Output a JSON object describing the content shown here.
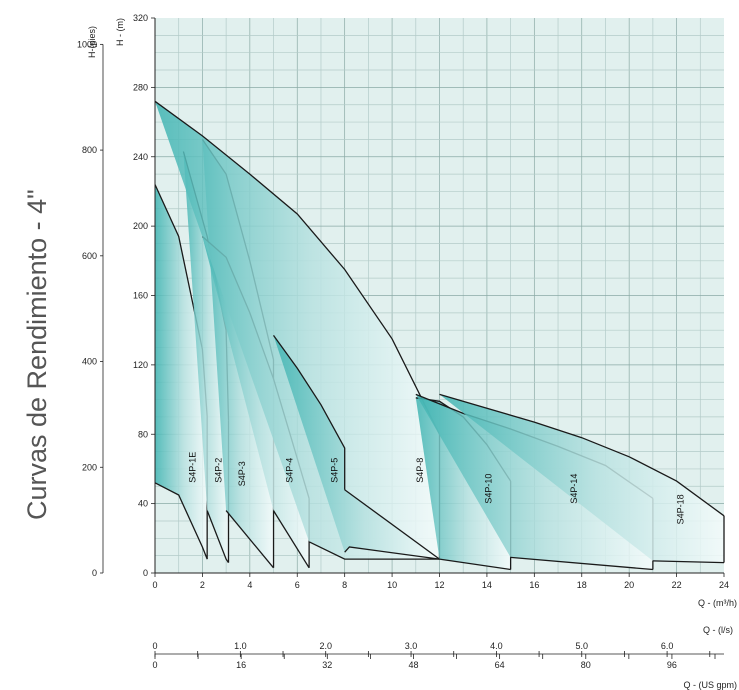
{
  "title": "Curvas de Rendimiento - 4\"",
  "chart_data": {
    "type": "area",
    "title": "Curvas de Rendimiento - 4\"",
    "x_label": "Q - (m³/h)",
    "y_label": "H - (m)",
    "y2_label": "H-(pies)",
    "x2_label": "Q - (l/s)",
    "x3_label": "Q - (US gpm)",
    "xlim": [
      0,
      24
    ],
    "ylim": [
      0,
      320
    ],
    "x_ticks": [
      "0",
      "2",
      "4",
      "6",
      "8",
      "10",
      "12",
      "14",
      "16",
      "18",
      "20",
      "22",
      "24"
    ],
    "y_ticks": [
      "0",
      "40",
      "80",
      "120",
      "160",
      "200",
      "240",
      "280",
      "320"
    ],
    "y2_ticks": [
      "0",
      "200",
      "400",
      "600",
      "800",
      "1000"
    ],
    "ls_ticks": [
      "0",
      "1.0",
      "2.0",
      "3.0",
      "4.0",
      "5.0",
      "6.0"
    ],
    "gpm_ticks": [
      "0",
      "16",
      "32",
      "48",
      "64",
      "80",
      "96"
    ],
    "grid": true,
    "series": [
      {
        "name": "S4P-1E",
        "upper": [
          [
            0,
            224
          ],
          [
            1,
            194
          ],
          [
            2,
            129
          ],
          [
            2.2,
            90
          ]
        ],
        "lower": [
          [
            0,
            52
          ],
          [
            1,
            45
          ],
          [
            2,
            15
          ],
          [
            2.2,
            8
          ]
        ]
      },
      {
        "name": "S4P-2",
        "upper": [
          [
            1.2,
            243
          ],
          [
            2.2,
            194
          ],
          [
            3,
            140
          ],
          [
            3.1,
            88
          ]
        ],
        "lower": [
          [
            2.2,
            36
          ],
          [
            3,
            8
          ],
          [
            3.1,
            6
          ]
        ]
      },
      {
        "name": "S4P-3",
        "upper": [
          [
            2,
            250
          ],
          [
            3,
            230
          ],
          [
            4,
            180
          ],
          [
            5,
            123
          ],
          [
            5,
            84
          ]
        ],
        "lower": [
          [
            3,
            36
          ],
          [
            5,
            3
          ]
        ]
      },
      {
        "name": "S4P-4",
        "upper": [
          [
            2,
            194
          ],
          [
            3,
            182
          ],
          [
            4,
            150
          ],
          [
            5,
            112
          ],
          [
            5.7,
            80
          ],
          [
            6.5,
            43
          ]
        ],
        "lower": [
          [
            5,
            36
          ],
          [
            6.5,
            3
          ]
        ]
      },
      {
        "name": "S4P-5",
        "upper": [
          [
            0,
            272
          ],
          [
            2,
            252
          ],
          [
            4,
            230
          ],
          [
            6,
            207
          ],
          [
            8,
            175
          ],
          [
            10,
            135
          ],
          [
            12,
            80
          ]
        ],
        "lower": [
          [
            6.5,
            18
          ],
          [
            8,
            8
          ],
          [
            12,
            8
          ]
        ]
      },
      {
        "name": "S4P-8",
        "upper": [
          [
            5,
            137
          ],
          [
            6,
            118
          ],
          [
            7,
            97
          ],
          [
            8,
            72
          ],
          [
            8,
            48
          ]
        ],
        "lower": [
          [
            8,
            12
          ],
          [
            8.2,
            15
          ],
          [
            12,
            8
          ]
        ]
      },
      {
        "name": "S4P-10",
        "upper": [
          [
            11,
            101
          ],
          [
            12,
            99
          ],
          [
            13,
            90
          ],
          [
            14,
            74
          ],
          [
            15,
            53
          ]
        ],
        "lower": [
          [
            12,
            8
          ],
          [
            15,
            2
          ]
        ]
      },
      {
        "name": "S4P-14",
        "upper": [
          [
            11,
            103
          ],
          [
            13,
            92
          ],
          [
            15,
            83
          ],
          [
            17,
            73
          ],
          [
            19,
            62
          ],
          [
            21,
            43
          ]
        ],
        "lower": [
          [
            15,
            9
          ],
          [
            21,
            2
          ]
        ]
      },
      {
        "name": "S4P-18",
        "upper": [
          [
            12,
            103
          ],
          [
            14,
            95
          ],
          [
            16,
            87
          ],
          [
            18,
            78
          ],
          [
            20,
            67
          ],
          [
            22,
            53
          ],
          [
            24,
            33
          ]
        ],
        "lower": [
          [
            21,
            7
          ],
          [
            24,
            6
          ]
        ]
      }
    ],
    "series_label_positions": [
      {
        "name": "S4P-1E",
        "x": 1.7,
        "y": 52
      },
      {
        "name": "S4P-2",
        "x": 2.8,
        "y": 52
      },
      {
        "name": "S4P-3",
        "x": 3.8,
        "y": 50
      },
      {
        "name": "S4P-4",
        "x": 5.8,
        "y": 52
      },
      {
        "name": "S4P-5",
        "x": 7.7,
        "y": 52
      },
      {
        "name": "S4P-8",
        "x": 11.3,
        "y": 52
      },
      {
        "name": "S4P-10",
        "x": 14.2,
        "y": 40
      },
      {
        "name": "S4P-14",
        "x": 17.8,
        "y": 40
      },
      {
        "name": "S4P-18",
        "x": 22.3,
        "y": 28
      }
    ]
  }
}
